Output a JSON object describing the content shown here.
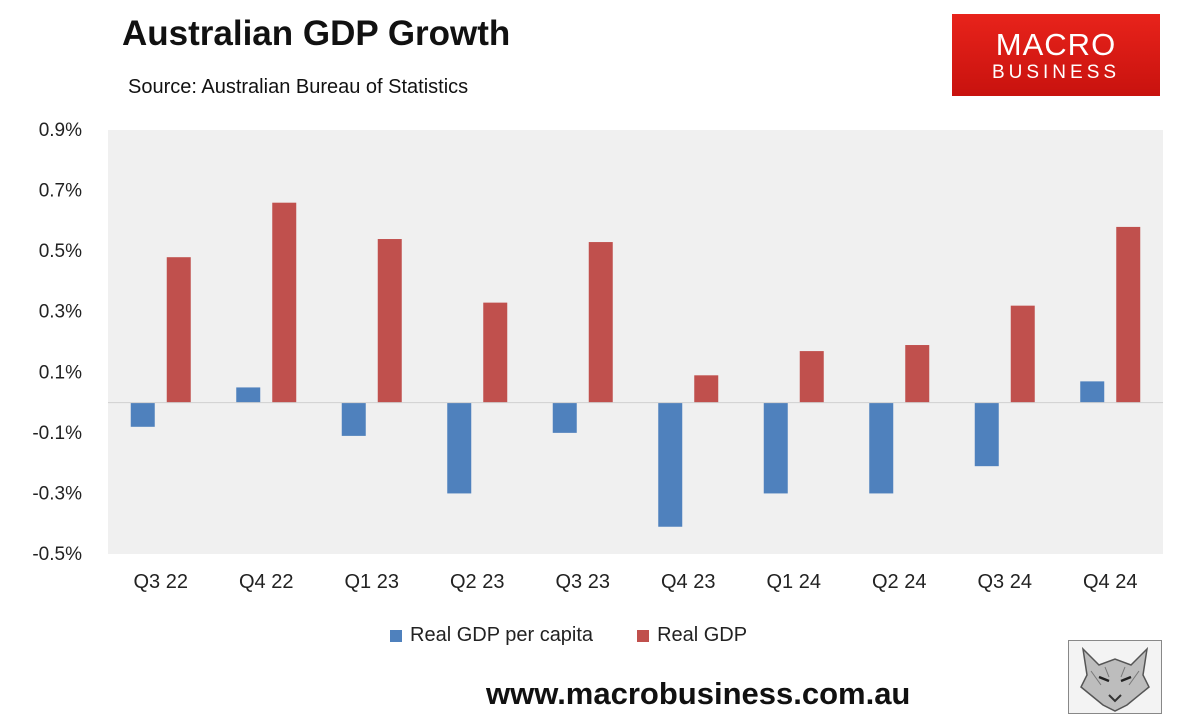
{
  "header": {
    "title": "Australian GDP Growth",
    "subtitle": "Source: Australian Bureau of Statistics",
    "logo_line1": "MACRO",
    "logo_line2": "BUSINESS"
  },
  "footer": {
    "website": "www.macrobusiness.com.au",
    "mascot_icon": "wolf-head-icon"
  },
  "chart_data": {
    "type": "bar",
    "categories": [
      "Q3 22",
      "Q4 22",
      "Q1 23",
      "Q2 23",
      "Q3 23",
      "Q4 23",
      "Q1 24",
      "Q2 24",
      "Q3 24",
      "Q4 24"
    ],
    "series": [
      {
        "name": "Real GDP per capita",
        "color": "#4f81bd",
        "values": [
          -0.08,
          0.05,
          -0.11,
          -0.3,
          -0.1,
          -0.41,
          -0.3,
          -0.3,
          -0.21,
          0.07
        ]
      },
      {
        "name": "Real GDP",
        "color": "#c0504d",
        "values": [
          0.48,
          0.66,
          0.54,
          0.33,
          0.53,
          0.09,
          0.17,
          0.19,
          0.32,
          0.58
        ]
      }
    ],
    "yticks": [
      "0.9%",
      "0.7%",
      "0.5%",
      "0.3%",
      "0.1%",
      "-0.1%",
      "-0.3%",
      "-0.5%"
    ],
    "ylim": [
      -0.5,
      0.9
    ],
    "legend_position": "bottom",
    "grid": false,
    "plot_background": "#f0f0f0"
  }
}
